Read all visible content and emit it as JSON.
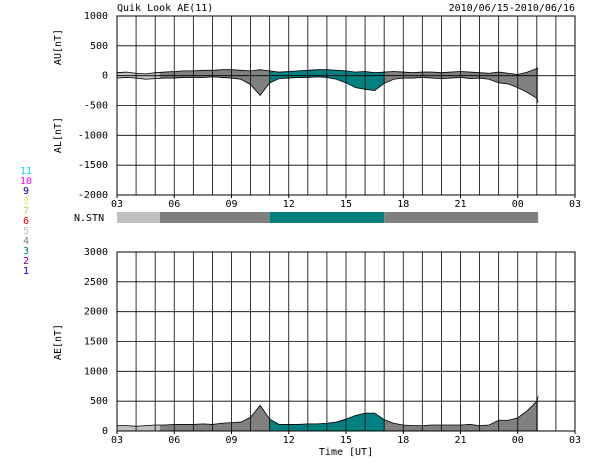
{
  "chart_data": [
    {
      "type": "band",
      "title": "Quik Look AE(11)",
      "date_range": "2010/06/15-2010/06/16",
      "xlim": [
        3,
        27
      ],
      "xticks": [
        {
          "value": 3,
          "label": "03"
        },
        {
          "value": 6,
          "label": "06"
        },
        {
          "value": 9,
          "label": "09"
        },
        12,
        15,
        18,
        21,
        {
          "value": 24,
          "label": "00"
        },
        {
          "value": 27,
          "label": "03"
        }
      ],
      "xminorticks": [
        3,
        4,
        5,
        6,
        7,
        8,
        9,
        10,
        11,
        12,
        13,
        14,
        15,
        16,
        17,
        18,
        19,
        20,
        21,
        22,
        23,
        24,
        25,
        26,
        27
      ],
      "ylim": [
        -2000,
        1000
      ],
      "yticks": [
        -2000,
        -1500,
        -1000,
        -500,
        0,
        500,
        1000
      ],
      "x": [
        3,
        3.5,
        4,
        4.5,
        5,
        5.5,
        6,
        6.5,
        7,
        7.5,
        8,
        8.5,
        9,
        9.5,
        10,
        10.5,
        11,
        11.5,
        12,
        12.5,
        13,
        13.5,
        14,
        14.5,
        15,
        15.5,
        16,
        16.5,
        17,
        17.5,
        18,
        18.5,
        19,
        19.5,
        20,
        20.5,
        21,
        21.5,
        22,
        22.5,
        23,
        23.5,
        24,
        24.5,
        25,
        25.07
      ],
      "series": [
        {
          "label": "AU[nT]",
          "values": [
            50,
            60,
            40,
            30,
            50,
            60,
            70,
            80,
            80,
            90,
            90,
            100,
            100,
            90,
            80,
            100,
            80,
            60,
            70,
            80,
            90,
            100,
            100,
            90,
            80,
            60,
            70,
            50,
            60,
            70,
            60,
            50,
            60,
            60,
            50,
            60,
            70,
            60,
            50,
            40,
            60,
            40,
            20,
            60,
            120,
            130
          ]
        },
        {
          "label": "AL[nT]",
          "values": [
            -40,
            -30,
            -40,
            -60,
            -50,
            -40,
            -40,
            -30,
            -30,
            -30,
            -20,
            -30,
            -40,
            -60,
            -150,
            -330,
            -120,
            -50,
            -40,
            -30,
            -30,
            -20,
            -30,
            -60,
            -120,
            -200,
            -230,
            -250,
            -130,
            -60,
            -40,
            -40,
            -30,
            -40,
            -50,
            -40,
            -30,
            -50,
            -40,
            -60,
            -120,
            -140,
            -200,
            -280,
            -380,
            -450
          ]
        }
      ]
    },
    {
      "type": "stations",
      "label": "N.STN",
      "xlim": [
        3,
        27
      ],
      "bins": [
        3,
        5.25,
        11,
        17,
        25.07
      ],
      "counts": [
        5,
        4,
        3,
        4
      ],
      "levels": [
        1,
        2,
        3,
        4,
        5,
        6,
        7,
        8,
        9,
        10,
        11
      ],
      "colors": [
        "#0000ff",
        "#800080",
        "#008080",
        "#808080",
        "#c0c0c0",
        "#ff0000",
        "#a0e060",
        "#f0f080",
        "#000080",
        "#ff00ff",
        "#00e0ff"
      ]
    },
    {
      "type": "area",
      "xlabel": "Time [UT]",
      "ylabel": "AE[nT]",
      "xlim": [
        3,
        27
      ],
      "xticks": [
        {
          "value": 3,
          "label": "03"
        },
        {
          "value": 6,
          "label": "06"
        },
        {
          "value": 9,
          "label": "09"
        },
        12,
        15,
        18,
        21,
        {
          "value": 24,
          "label": "00"
        },
        {
          "value": 27,
          "label": "03"
        }
      ],
      "xminorticks": [
        3,
        4,
        5,
        6,
        7,
        8,
        9,
        10,
        11,
        12,
        13,
        14,
        15,
        16,
        17,
        18,
        19,
        20,
        21,
        22,
        23,
        24,
        25,
        26,
        27
      ],
      "ylim": [
        0,
        3000
      ],
      "yticks": [
        0,
        500,
        1000,
        1500,
        2000,
        2500,
        3000
      ],
      "x": [
        3,
        3.5,
        4,
        4.5,
        5,
        5.5,
        6,
        6.5,
        7,
        7.5,
        8,
        8.5,
        9,
        9.5,
        10,
        10.5,
        11,
        11.5,
        12,
        12.5,
        13,
        13.5,
        14,
        14.5,
        15,
        15.5,
        16,
        16.5,
        17,
        17.5,
        18,
        18.5,
        19,
        19.5,
        20,
        20.5,
        21,
        21.5,
        22,
        22.5,
        23,
        23.5,
        24,
        24.5,
        25,
        25.07
      ],
      "values": [
        90,
        90,
        80,
        90,
        100,
        100,
        110,
        110,
        110,
        120,
        110,
        130,
        140,
        150,
        230,
        430,
        200,
        110,
        110,
        110,
        120,
        120,
        130,
        150,
        200,
        260,
        300,
        300,
        190,
        130,
        100,
        90,
        90,
        100,
        100,
        100,
        100,
        110,
        90,
        100,
        180,
        180,
        220,
        340,
        500,
        580
      ]
    }
  ]
}
